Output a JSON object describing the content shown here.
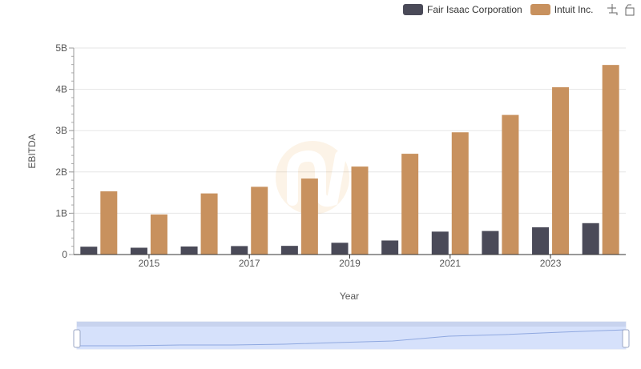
{
  "legend": {
    "items": [
      {
        "label": "Fair Isaac Corporation",
        "color": "#4a4a58"
      },
      {
        "label": "Intuit Inc.",
        "color": "#c8915e"
      }
    ],
    "tools": [
      "zoom-icon",
      "restore-icon"
    ]
  },
  "chart_data": {
    "type": "bar",
    "xlabel": "Year",
    "ylabel": "EBITDA",
    "x": [
      2014,
      2015,
      2016,
      2017,
      2018,
      2019,
      2020,
      2021,
      2022,
      2023,
      2024
    ],
    "x_tick_labels": [
      "2015",
      "2017",
      "2019",
      "2021",
      "2023"
    ],
    "y_tick_labels": [
      "0",
      "1B",
      "2B",
      "3B",
      "4B",
      "5B"
    ],
    "ylim": [
      0,
      5000000000
    ],
    "grid": true,
    "legend_position": "top-right",
    "series": [
      {
        "name": "Fair Isaac Corporation",
        "color": "#4a4a58",
        "values": [
          190000000,
          165000000,
          195000000,
          205000000,
          210000000,
          285000000,
          340000000,
          555000000,
          570000000,
          660000000,
          760000000
        ]
      },
      {
        "name": "Intuit Inc.",
        "color": "#c8915e",
        "values": [
          1530000000,
          970000000,
          1480000000,
          1640000000,
          1840000000,
          2130000000,
          2440000000,
          2960000000,
          3380000000,
          4050000000,
          4590000000
        ]
      }
    ]
  }
}
